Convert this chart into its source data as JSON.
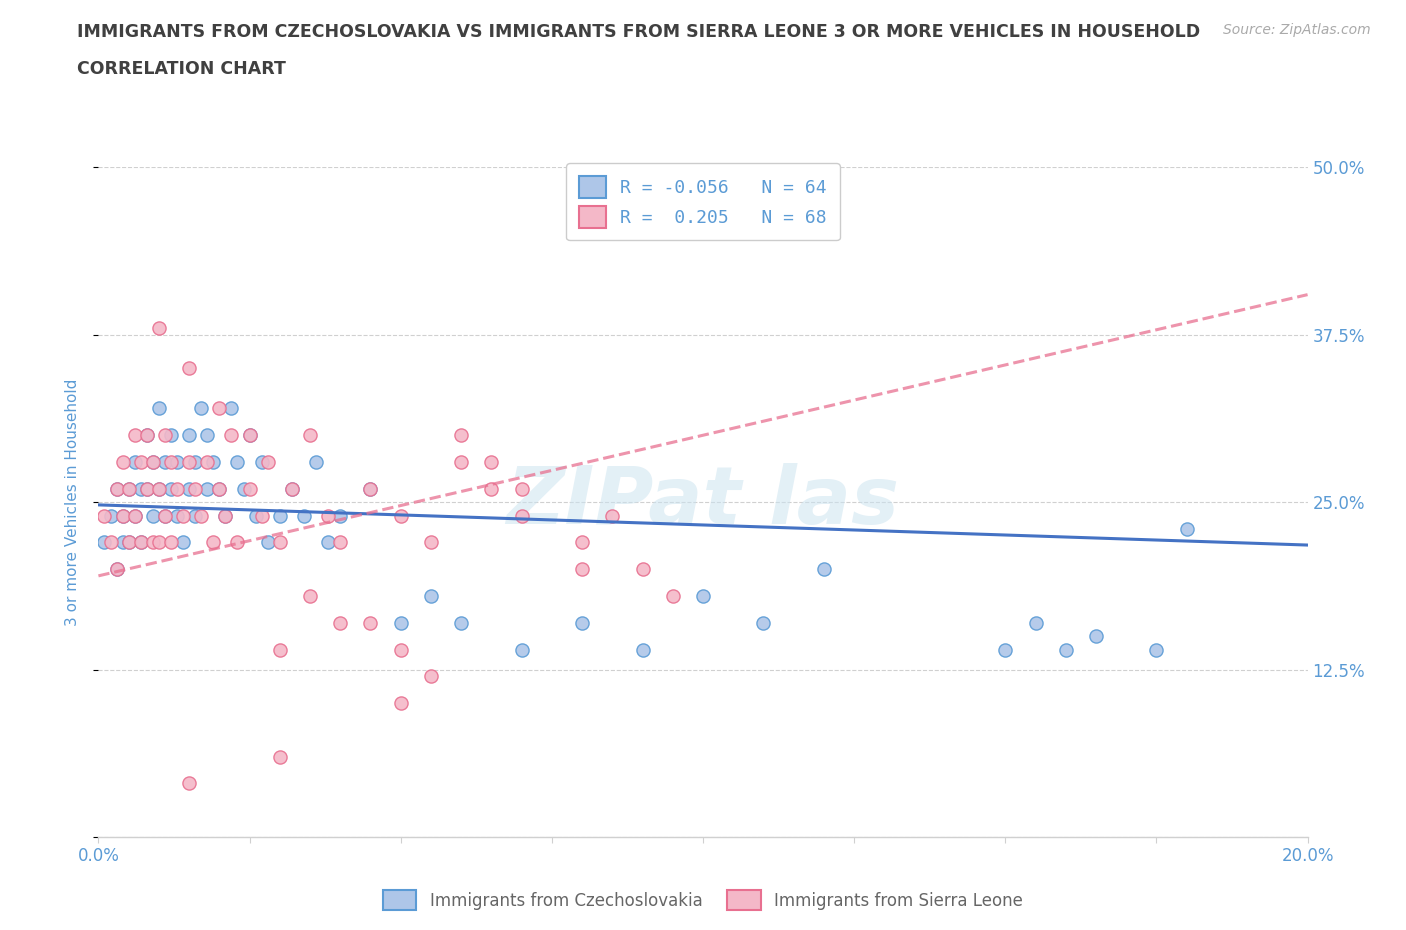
{
  "title": "IMMIGRANTS FROM CZECHOSLOVAKIA VS IMMIGRANTS FROM SIERRA LEONE 3 OR MORE VEHICLES IN HOUSEHOLD",
  "subtitle": "CORRELATION CHART",
  "source": "Source: ZipAtlas.com",
  "ylabel": "3 or more Vehicles in Household",
  "xlim": [
    0.0,
    0.2
  ],
  "ylim": [
    0.0,
    0.5
  ],
  "xticks": [
    0.0,
    0.025,
    0.05,
    0.075,
    0.1,
    0.125,
    0.15,
    0.175,
    0.2
  ],
  "yticks": [
    0.0,
    0.125,
    0.25,
    0.375,
    0.5
  ],
  "yticklabels_right": [
    "",
    "12.5%",
    "25.0%",
    "37.5%",
    "50.0%"
  ],
  "legend_line1": "R = -0.056   N = 64",
  "legend_line2": "R =  0.205   N = 68",
  "color_czech": "#aec6e8",
  "color_czech_edge": "#5b9bd5",
  "color_sierra": "#f4b8c8",
  "color_sierra_edge": "#e87090",
  "color_czech_trend": "#4472c4",
  "color_sierra_trend": "#e87090",
  "title_color": "#404040",
  "axis_color": "#5b9bd5",
  "grid_color": "#d0d0d0",
  "watermark": "ZIPat las",
  "czech_x": [
    0.001,
    0.002,
    0.003,
    0.003,
    0.004,
    0.004,
    0.005,
    0.005,
    0.006,
    0.006,
    0.007,
    0.007,
    0.008,
    0.008,
    0.009,
    0.009,
    0.01,
    0.01,
    0.011,
    0.011,
    0.012,
    0.012,
    0.013,
    0.013,
    0.014,
    0.015,
    0.015,
    0.016,
    0.016,
    0.017,
    0.018,
    0.018,
    0.019,
    0.02,
    0.021,
    0.022,
    0.023,
    0.024,
    0.025,
    0.026,
    0.027,
    0.028,
    0.03,
    0.032,
    0.034,
    0.036,
    0.038,
    0.04,
    0.045,
    0.05,
    0.055,
    0.06,
    0.07,
    0.08,
    0.09,
    0.1,
    0.11,
    0.12,
    0.15,
    0.155,
    0.16,
    0.165,
    0.175,
    0.18
  ],
  "czech_y": [
    0.22,
    0.24,
    0.26,
    0.2,
    0.24,
    0.22,
    0.26,
    0.22,
    0.28,
    0.24,
    0.26,
    0.22,
    0.3,
    0.26,
    0.24,
    0.28,
    0.32,
    0.26,
    0.28,
    0.24,
    0.3,
    0.26,
    0.28,
    0.24,
    0.22,
    0.3,
    0.26,
    0.28,
    0.24,
    0.32,
    0.3,
    0.26,
    0.28,
    0.26,
    0.24,
    0.32,
    0.28,
    0.26,
    0.3,
    0.24,
    0.28,
    0.22,
    0.24,
    0.26,
    0.24,
    0.28,
    0.22,
    0.24,
    0.26,
    0.16,
    0.18,
    0.16,
    0.14,
    0.16,
    0.14,
    0.18,
    0.16,
    0.2,
    0.14,
    0.16,
    0.14,
    0.15,
    0.14,
    0.23
  ],
  "sierra_x": [
    0.001,
    0.002,
    0.003,
    0.003,
    0.004,
    0.004,
    0.005,
    0.005,
    0.006,
    0.006,
    0.007,
    0.007,
    0.008,
    0.008,
    0.009,
    0.009,
    0.01,
    0.01,
    0.011,
    0.011,
    0.012,
    0.012,
    0.013,
    0.014,
    0.015,
    0.016,
    0.017,
    0.018,
    0.019,
    0.02,
    0.021,
    0.022,
    0.023,
    0.025,
    0.027,
    0.028,
    0.03,
    0.032,
    0.035,
    0.038,
    0.04,
    0.045,
    0.05,
    0.055,
    0.06,
    0.065,
    0.07,
    0.08,
    0.085,
    0.09,
    0.095,
    0.04,
    0.03,
    0.035,
    0.045,
    0.05,
    0.055,
    0.01,
    0.015,
    0.02,
    0.025,
    0.06,
    0.065,
    0.07,
    0.08,
    0.05,
    0.015,
    0.03
  ],
  "sierra_y": [
    0.24,
    0.22,
    0.26,
    0.2,
    0.28,
    0.24,
    0.26,
    0.22,
    0.3,
    0.24,
    0.28,
    0.22,
    0.3,
    0.26,
    0.22,
    0.28,
    0.26,
    0.22,
    0.3,
    0.24,
    0.28,
    0.22,
    0.26,
    0.24,
    0.28,
    0.26,
    0.24,
    0.28,
    0.22,
    0.26,
    0.24,
    0.3,
    0.22,
    0.26,
    0.24,
    0.28,
    0.22,
    0.26,
    0.3,
    0.24,
    0.22,
    0.26,
    0.24,
    0.22,
    0.3,
    0.28,
    0.26,
    0.22,
    0.24,
    0.2,
    0.18,
    0.16,
    0.14,
    0.18,
    0.16,
    0.14,
    0.12,
    0.38,
    0.35,
    0.32,
    0.3,
    0.28,
    0.26,
    0.24,
    0.2,
    0.1,
    0.04,
    0.06
  ],
  "czech_trend_x": [
    0.0,
    0.2
  ],
  "czech_trend_y": [
    0.248,
    0.218
  ],
  "sierra_trend_x": [
    0.0,
    0.2
  ],
  "sierra_trend_y": [
    0.195,
    0.405
  ]
}
